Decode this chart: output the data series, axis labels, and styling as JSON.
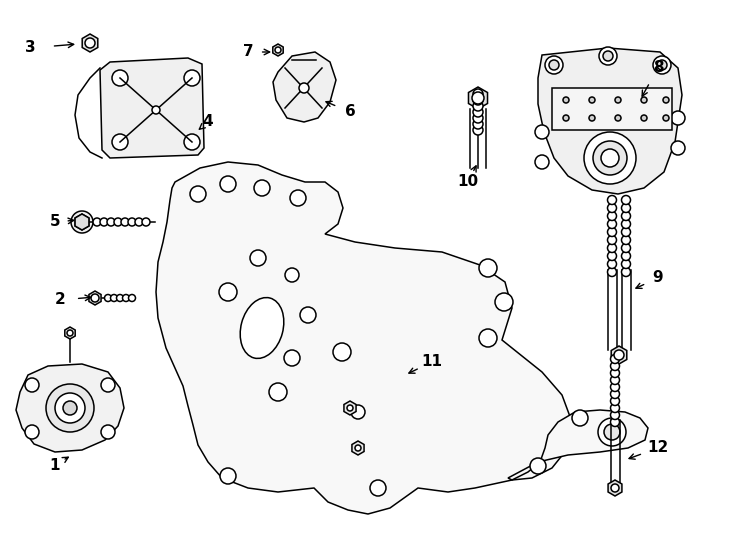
{
  "bg_color": "#ffffff",
  "line_color": "#000000",
  "figsize": [
    7.34,
    5.4
  ],
  "dpi": 100,
  "labels_data": [
    [
      "1",
      55,
      465,
      72,
      455
    ],
    [
      "2",
      60,
      300,
      95,
      297
    ],
    [
      "3",
      30,
      48,
      78,
      44
    ],
    [
      "4",
      208,
      122,
      196,
      132
    ],
    [
      "5",
      55,
      222,
      78,
      220
    ],
    [
      "6",
      350,
      112,
      322,
      100
    ],
    [
      "7",
      248,
      52,
      274,
      52
    ],
    [
      "8",
      658,
      68,
      640,
      100
    ],
    [
      "9",
      658,
      278,
      632,
      290
    ],
    [
      "10",
      468,
      182,
      478,
      162
    ],
    [
      "11",
      432,
      362,
      405,
      375
    ],
    [
      "12",
      658,
      448,
      625,
      460
    ]
  ]
}
